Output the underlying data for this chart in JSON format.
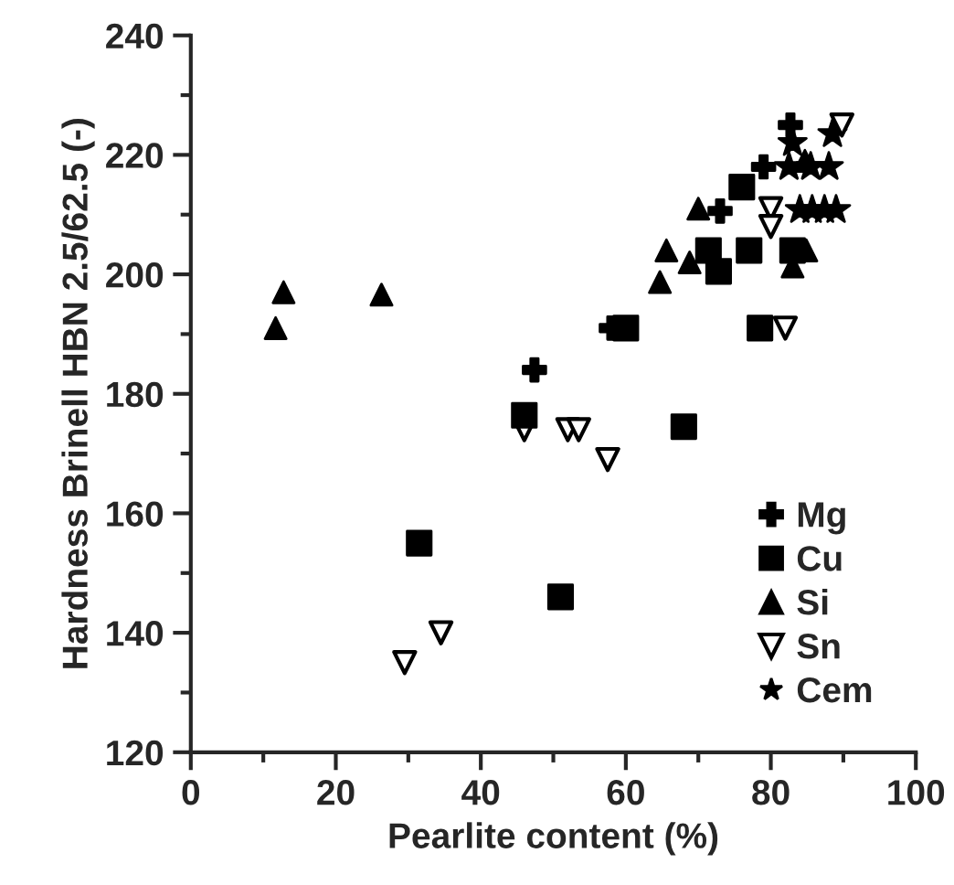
{
  "chart_data": {
    "type": "scatter",
    "xlabel": "Pearlite content (%)",
    "ylabel": "Hardness Brinell HBN 2.5/62.5 (-)",
    "xlim": [
      0,
      100
    ],
    "ylim": [
      120,
      240
    ],
    "xticks": [
      0,
      {
        "value": 10,
        "label": null
      },
      20,
      {
        "value": 30,
        "label": null
      },
      40,
      {
        "value": 50,
        "label": null
      },
      60,
      {
        "value": 70,
        "label": null
      },
      80,
      {
        "value": 90,
        "label": null
      },
      100
    ],
    "yticks": [
      120,
      {
        "value": 130,
        "label": null
      },
      140,
      {
        "value": 150,
        "label": null
      },
      160,
      {
        "value": 170,
        "label": null
      },
      180,
      {
        "value": 190,
        "label": null
      },
      200,
      {
        "value": 210,
        "label": null
      },
      220,
      {
        "value": 230,
        "label": null
      },
      240
    ],
    "grid": false,
    "legend": "bottom right",
    "series": [
      {
        "name": "Mg",
        "color": "#000000",
        "marker": "cross",
        "x": [
          47.4,
          58,
          73,
          79,
          82.7
        ],
        "values": [
          184,
          191,
          210.6,
          218,
          225
        ]
      },
      {
        "name": "Cu",
        "color": "#000000",
        "marker": "square",
        "x": [
          31.5,
          51,
          46,
          60,
          68,
          71.4,
          72.8,
          76,
          78.5,
          77,
          79,
          81,
          83
        ],
        "values": [
          155,
          146,
          176.4,
          191,
          174.5,
          204,
          200.5,
          214.6,
          191,
          204,
          null,
          null,
          204
        ]
      },
      {
        "name": "Si",
        "color": "#000000",
        "marker": "triangle",
        "x": [
          11.7,
          12.8,
          26.3,
          64.7,
          65.6,
          68.8,
          70,
          83,
          84.9,
          84.7
        ],
        "values": [
          191,
          197,
          196.6,
          198.7,
          204,
          202,
          211,
          201.3,
          204,
          219
        ]
      },
      {
        "name": "Sn",
        "color": "#000000",
        "marker": "triangle_down",
        "x": [
          29.5,
          34.5,
          46,
          52,
          53.5,
          57.5,
          82,
          80,
          80,
          89.8
        ],
        "values": [
          135,
          140,
          174,
          174,
          174,
          169,
          191,
          211,
          208,
          225
        ]
      },
      {
        "name": "Cem",
        "color": "#000000",
        "marker": "star",
        "x": [
          88.5,
          83,
          82.5,
          85.5,
          88,
          84,
          85.7,
          87.4,
          89
        ],
        "values": [
          223.5,
          222,
          218,
          218,
          218,
          210.8,
          210.8,
          210.8,
          210.8
        ]
      }
    ]
  }
}
